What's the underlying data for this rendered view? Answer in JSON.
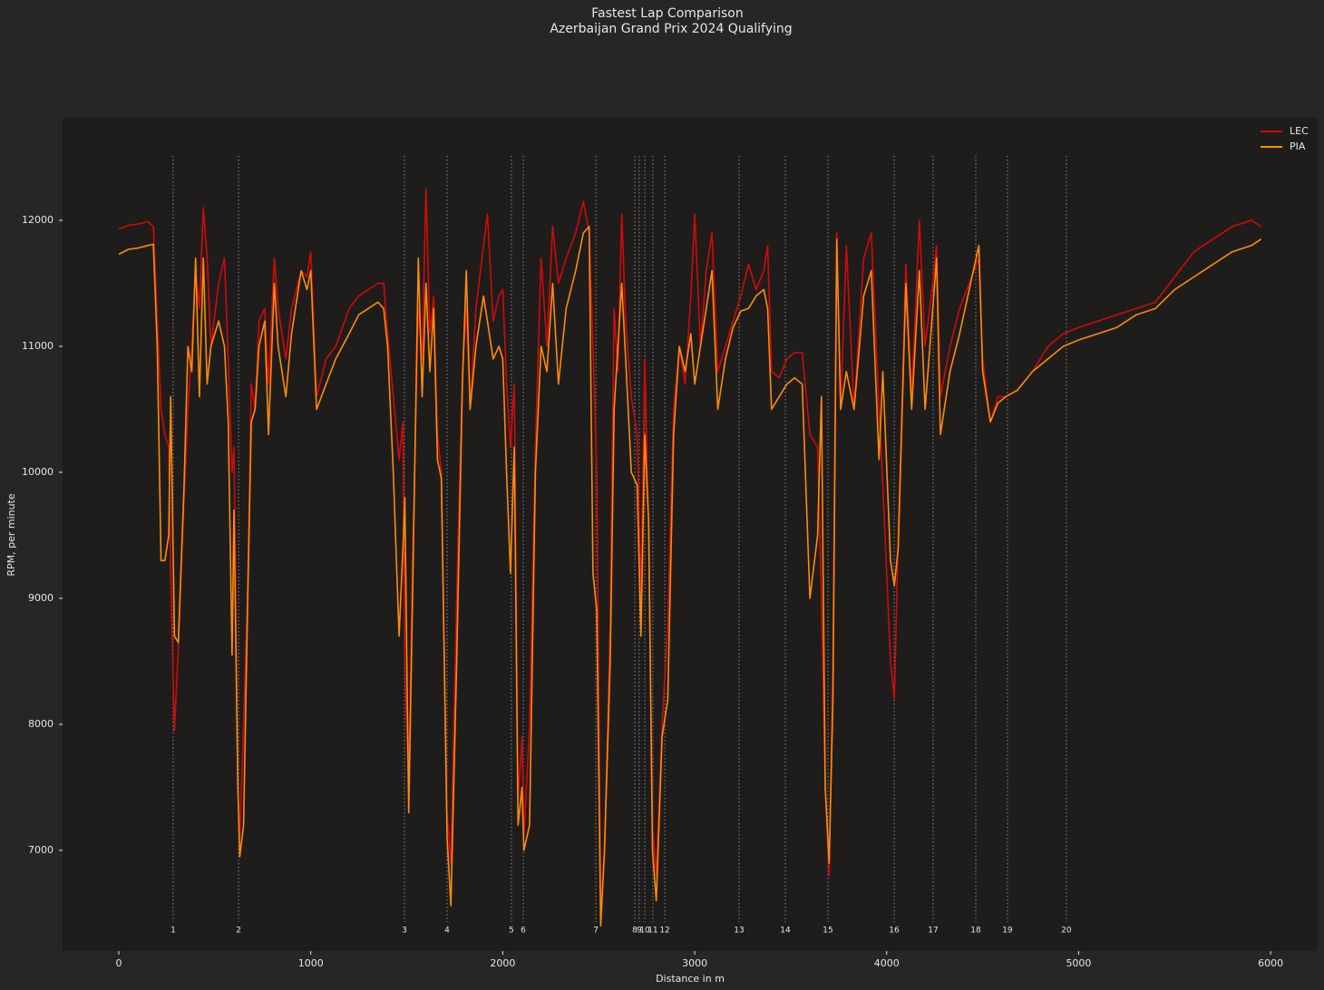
{
  "chart_data": {
    "type": "line",
    "title": "Fastest Lap Comparison",
    "subtitle": "Azerbaijan Grand Prix 2024 Qualifying",
    "x_label": "Distance in m",
    "y_label": "RPM, per minute",
    "xlim": [
      -293,
      6245
    ],
    "xticks": [
      0,
      1000,
      2000,
      3000,
      4000,
      5000,
      6000
    ],
    "ylim": [
      6201,
      12813
    ],
    "yticks": [
      7000,
      8000,
      9000,
      10000,
      11000,
      12000
    ],
    "grid": false,
    "legend": "upper right",
    "x": [
      0,
      50,
      100,
      150,
      180,
      200,
      220,
      240,
      260,
      270,
      290,
      310,
      340,
      360,
      380,
      400,
      420,
      440,
      460,
      480,
      520,
      550,
      570,
      590,
      600,
      620,
      630,
      650,
      670,
      690,
      710,
      730,
      760,
      780,
      810,
      830,
      870,
      900,
      950,
      980,
      1000,
      1030,
      1080,
      1130,
      1200,
      1250,
      1300,
      1350,
      1380,
      1400,
      1430,
      1460,
      1480,
      1490,
      1510,
      1530,
      1560,
      1580,
      1600,
      1620,
      1640,
      1660,
      1680,
      1710,
      1730,
      1760,
      1790,
      1810,
      1830,
      1860,
      1900,
      1920,
      1950,
      1980,
      2000,
      2020,
      2040,
      2060,
      2080,
      2100,
      2110,
      2140,
      2170,
      2200,
      2230,
      2260,
      2290,
      2330,
      2380,
      2420,
      2450,
      2470,
      2490,
      2510,
      2530,
      2560,
      2580,
      2600,
      2620,
      2640,
      2670,
      2700,
      2720,
      2740,
      2760,
      2780,
      2800,
      2830,
      2860,
      2890,
      2920,
      2950,
      2980,
      3000,
      3030,
      3060,
      3090,
      3120,
      3160,
      3200,
      3240,
      3280,
      3320,
      3360,
      3380,
      3400,
      3440,
      3480,
      3520,
      3560,
      3600,
      3640,
      3660,
      3680,
      3700,
      3720,
      3740,
      3760,
      3790,
      3830,
      3880,
      3920,
      3960,
      3980,
      4020,
      4040,
      4060,
      4100,
      4130,
      4170,
      4200,
      4240,
      4260,
      4280,
      4330,
      4380,
      4430,
      4480,
      4500,
      4540,
      4580,
      4620,
      4680,
      4760,
      4840,
      4920,
      5000,
      5100,
      5200,
      5300,
      5400,
      5500,
      5600,
      5700,
      5800,
      5900,
      5950
    ],
    "series": [
      {
        "name": "LEC",
        "color": "#d10a0a",
        "values": [
          11930,
          11960,
          11970,
          11990,
          11950,
          11200,
          10500,
          10300,
          10200,
          9200,
          7950,
          8600,
          9800,
          10500,
          11000,
          11600,
          11300,
          12100,
          11700,
          11000,
          11500,
          11700,
          10900,
          10000,
          10200,
          7500,
          7100,
          8000,
          9000,
          10700,
          10500,
          11200,
          11300,
          10700,
          11700,
          11300,
          10900,
          11300,
          11600,
          11550,
          11750,
          10600,
          10900,
          11000,
          11300,
          11400,
          11450,
          11500,
          11500,
          11100,
          10600,
          10100,
          10400,
          8500,
          7500,
          9300,
          11300,
          10900,
          12250,
          11100,
          11400,
          10300,
          10000,
          7300,
          6900,
          9000,
          10800,
          11300,
          10500,
          11300,
          11800,
          12050,
          11200,
          11400,
          11450,
          10700,
          10200,
          10700,
          7400,
          7900,
          7100,
          8000,
          10200,
          11700,
          11000,
          11950,
          11500,
          11700,
          11900,
          12150,
          11900,
          11000,
          10000,
          6500,
          7000,
          8800,
          11300,
          10800,
          12050,
          11200,
          10600,
          10300,
          9000,
          10900,
          9500,
          7200,
          6800,
          8000,
          8800,
          10500,
          11000,
          10700,
          11400,
          12050,
          11000,
          11600,
          11900,
          10800,
          11000,
          11200,
          11400,
          11650,
          11450,
          11600,
          11800,
          10800,
          10750,
          10900,
          10950,
          10950,
          10300,
          10200,
          9000,
          7500,
          6800,
          8500,
          11900,
          10500,
          11800,
          10500,
          11700,
          11900,
          10500,
          9900,
          8500,
          8200,
          9500,
          11650,
          10600,
          12000,
          11000,
          11500,
          11800,
          10600,
          11000,
          11300,
          11500,
          11700,
          10900,
          10400,
          10600,
          10600,
          10650,
          10800,
          11000,
          11100,
          11150,
          11200,
          11250,
          11300,
          11350,
          11550,
          11750,
          11850,
          11950,
          12000,
          11950
        ]
      },
      {
        "name": "PIA",
        "color": "#ff8c0a",
        "values": [
          11730,
          11770,
          11780,
          11800,
          11810,
          11000,
          9300,
          9300,
          9500,
          10600,
          8700,
          8650,
          9900,
          11000,
          10800,
          11700,
          10600,
          11700,
          10700,
          11000,
          11200,
          11000,
          10400,
          8550,
          9700,
          7500,
          6950,
          7200,
          8900,
          10400,
          10500,
          11000,
          11200,
          10300,
          11500,
          11000,
          10600,
          11100,
          11600,
          11450,
          11600,
          10500,
          10700,
          10900,
          11100,
          11250,
          11300,
          11350,
          11300,
          11000,
          10000,
          8700,
          9400,
          9800,
          7300,
          9000,
          11700,
          10600,
          11500,
          10800,
          11300,
          10100,
          9950,
          7100,
          6560,
          8500,
          10700,
          11600,
          10500,
          11000,
          11400,
          11200,
          10900,
          11000,
          10900,
          10000,
          9200,
          10200,
          7200,
          7500,
          7000,
          7200,
          10000,
          11000,
          10800,
          11500,
          10700,
          11300,
          11600,
          11900,
          11950,
          9200,
          8900,
          6400,
          7000,
          8500,
          10500,
          11000,
          11500,
          10900,
          10000,
          9900,
          8700,
          10300,
          9600,
          7000,
          6600,
          7900,
          8200,
          10300,
          11000,
          10800,
          11100,
          10700,
          11000,
          11300,
          11600,
          10500,
          10900,
          11150,
          11280,
          11300,
          11400,
          11450,
          11300,
          10500,
          10600,
          10700,
          10750,
          10700,
          9000,
          9500,
          10600,
          7500,
          6900,
          8200,
          11850,
          10500,
          10800,
          10500,
          11400,
          11600,
          10100,
          10800,
          9300,
          9100,
          9400,
          11500,
          10500,
          11600,
          10500,
          11300,
          11700,
          10300,
          10800,
          11100,
          11450,
          11800,
          10800,
          10400,
          10550,
          10600,
          10650,
          10800,
          10900,
          11000,
          11050,
          11100,
          11150,
          11250,
          11300,
          11450,
          11550,
          11650,
          11750,
          11800,
          11850
        ]
      }
    ],
    "corners": [
      {
        "number": 1,
        "distance": 283
      },
      {
        "number": 2,
        "distance": 624
      },
      {
        "number": 3,
        "distance": 1488
      },
      {
        "number": 4,
        "distance": 1710
      },
      {
        "number": 5,
        "distance": 2045
      },
      {
        "number": 6,
        "distance": 2107
      },
      {
        "number": 7,
        "distance": 2485
      },
      {
        "number": 8,
        "distance": 2688
      },
      {
        "number": 9,
        "distance": 2711
      },
      {
        "number": 10,
        "distance": 2740
      },
      {
        "number": 11,
        "distance": 2782
      },
      {
        "number": 12,
        "distance": 2844
      },
      {
        "number": 13,
        "distance": 3231
      },
      {
        "number": 14,
        "distance": 3472
      },
      {
        "number": 15,
        "distance": 3694
      },
      {
        "number": 16,
        "distance": 4039
      },
      {
        "number": 17,
        "distance": 4242
      },
      {
        "number": 18,
        "distance": 4464
      },
      {
        "number": 19,
        "distance": 4629
      },
      {
        "number": 20,
        "distance": 4936
      }
    ]
  }
}
